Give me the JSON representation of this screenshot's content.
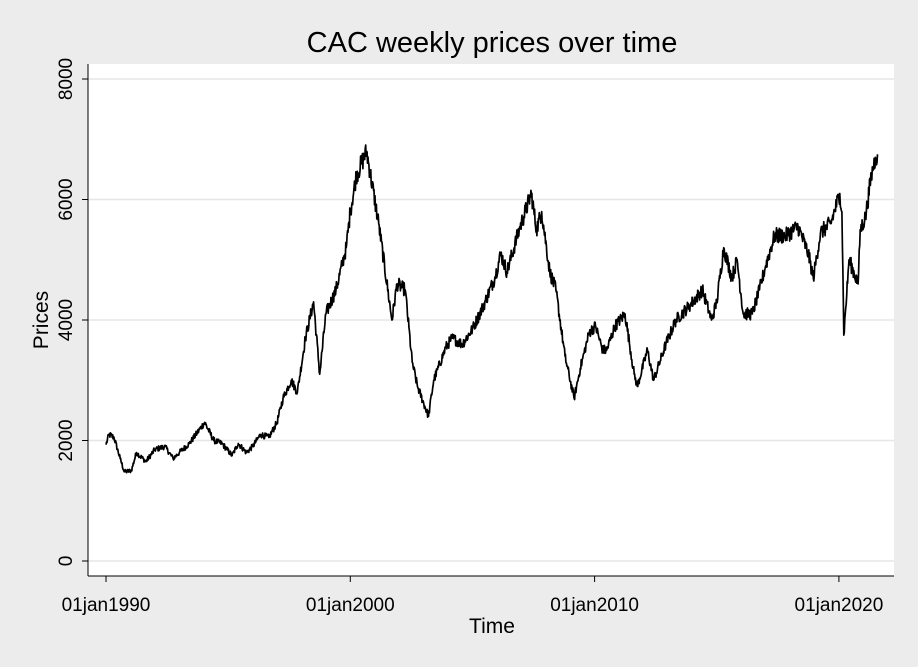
{
  "chart_data": {
    "type": "line",
    "title": "CAC weekly prices over time",
    "xlabel": "Time",
    "ylabel": "Prices",
    "ylim": [
      0,
      8000
    ],
    "xlim": [
      "1990-01-01",
      "2021-08-01"
    ],
    "y_ticks": [
      {
        "value": 0,
        "label": "0"
      },
      {
        "value": 2000,
        "label": "2000"
      },
      {
        "value": 4000,
        "label": "4000"
      },
      {
        "value": 6000,
        "label": "6000"
      },
      {
        "value": 8000,
        "label": "8000"
      }
    ],
    "x_ticks": [
      {
        "value": "1990-01-01",
        "label": "01jan1990"
      },
      {
        "value": "2000-01-01",
        "label": "01jan2000"
      },
      {
        "value": "2010-01-01",
        "label": "01jan2010"
      },
      {
        "value": "2020-01-01",
        "label": "01jan2020"
      }
    ],
    "grid": true,
    "legend": "none",
    "colors": {
      "line": "#000000",
      "grid": "#e6e6e6",
      "plot_bg": "#ffffff",
      "page_bg": "#ececec"
    },
    "series": [
      {
        "points": [
          [
            "1990-01-01",
            1930
          ],
          [
            "1990-02-15",
            2100
          ],
          [
            "1990-05-01",
            2050
          ],
          [
            "1990-08-01",
            1700
          ],
          [
            "1990-10-01",
            1480
          ],
          [
            "1991-01-15",
            1500
          ],
          [
            "1991-04-01",
            1800
          ],
          [
            "1991-08-20",
            1650
          ],
          [
            "1992-01-01",
            1850
          ],
          [
            "1992-06-01",
            1900
          ],
          [
            "1992-10-01",
            1700
          ],
          [
            "1993-01-01",
            1800
          ],
          [
            "1993-06-01",
            1950
          ],
          [
            "1994-01-15",
            2300
          ],
          [
            "1994-06-01",
            2000
          ],
          [
            "1994-10-01",
            1950
          ],
          [
            "1995-03-01",
            1750
          ],
          [
            "1995-06-01",
            1950
          ],
          [
            "1995-10-01",
            1800
          ],
          [
            "1996-01-01",
            1900
          ],
          [
            "1996-05-01",
            2100
          ],
          [
            "1996-09-01",
            2050
          ],
          [
            "1997-01-01",
            2300
          ],
          [
            "1997-04-01",
            2700
          ],
          [
            "1997-08-01",
            3000
          ],
          [
            "1997-11-01",
            2800
          ],
          [
            "1998-03-01",
            3700
          ],
          [
            "1998-07-01",
            4300
          ],
          [
            "1998-10-01",
            3100
          ],
          [
            "1999-01-01",
            4100
          ],
          [
            "1999-06-01",
            4500
          ],
          [
            "1999-11-01",
            5200
          ],
          [
            "2000-01-01",
            5800
          ],
          [
            "2000-04-01",
            6400
          ],
          [
            "2000-09-01",
            6800
          ],
          [
            "2001-03-01",
            5600
          ],
          [
            "2001-09-15",
            4000
          ],
          [
            "2001-12-01",
            4600
          ],
          [
            "2002-04-01",
            4500
          ],
          [
            "2002-07-15",
            3300
          ],
          [
            "2002-10-01",
            2900
          ],
          [
            "2003-03-15",
            2400
          ],
          [
            "2003-06-01",
            3000
          ],
          [
            "2003-12-01",
            3550
          ],
          [
            "2004-03-01",
            3700
          ],
          [
            "2004-08-01",
            3600
          ],
          [
            "2005-01-01",
            3850
          ],
          [
            "2005-06-01",
            4200
          ],
          [
            "2005-12-01",
            4700
          ],
          [
            "2006-03-01",
            5100
          ],
          [
            "2006-06-01",
            4800
          ],
          [
            "2006-12-01",
            5500
          ],
          [
            "2007-06-01",
            6100
          ],
          [
            "2007-08-15",
            5500
          ],
          [
            "2007-11-01",
            5800
          ],
          [
            "2008-03-01",
            4800
          ],
          [
            "2008-06-01",
            4500
          ],
          [
            "2008-10-15",
            3400
          ],
          [
            "2009-03-01",
            2700
          ],
          [
            "2009-06-01",
            3200
          ],
          [
            "2009-10-15",
            3800
          ],
          [
            "2010-01-15",
            3900
          ],
          [
            "2010-05-01",
            3500
          ],
          [
            "2010-07-01",
            3500
          ],
          [
            "2010-11-01",
            3900
          ],
          [
            "2011-04-01",
            4100
          ],
          [
            "2011-08-15",
            3100
          ],
          [
            "2011-10-01",
            2900
          ],
          [
            "2012-03-01",
            3500
          ],
          [
            "2012-06-01",
            3000
          ],
          [
            "2012-12-01",
            3600
          ],
          [
            "2013-05-01",
            4000
          ],
          [
            "2013-12-01",
            4250
          ],
          [
            "2014-06-01",
            4500
          ],
          [
            "2014-10-15",
            4000
          ],
          [
            "2015-01-01",
            4300
          ],
          [
            "2015-04-15",
            5200
          ],
          [
            "2015-08-15",
            4700
          ],
          [
            "2015-11-01",
            5000
          ],
          [
            "2016-02-01",
            4100
          ],
          [
            "2016-06-15",
            4100
          ],
          [
            "2016-10-01",
            4500
          ],
          [
            "2017-01-01",
            4900
          ],
          [
            "2017-05-15",
            5400
          ],
          [
            "2017-11-01",
            5400
          ],
          [
            "2018-05-01",
            5550
          ],
          [
            "2018-10-01",
            5100
          ],
          [
            "2018-12-15",
            4700
          ],
          [
            "2019-04-01",
            5450
          ],
          [
            "2019-09-01",
            5600
          ],
          [
            "2020-01-15",
            6100
          ],
          [
            "2020-02-15",
            5800
          ],
          [
            "2020-03-15",
            3750
          ],
          [
            "2020-06-01",
            5000
          ],
          [
            "2020-10-15",
            4600
          ],
          [
            "2020-11-15",
            5500
          ],
          [
            "2021-02-01",
            5700
          ],
          [
            "2021-05-01",
            6400
          ],
          [
            "2021-07-01",
            6700
          ],
          [
            "2021-08-01",
            6750
          ]
        ]
      }
    ]
  }
}
